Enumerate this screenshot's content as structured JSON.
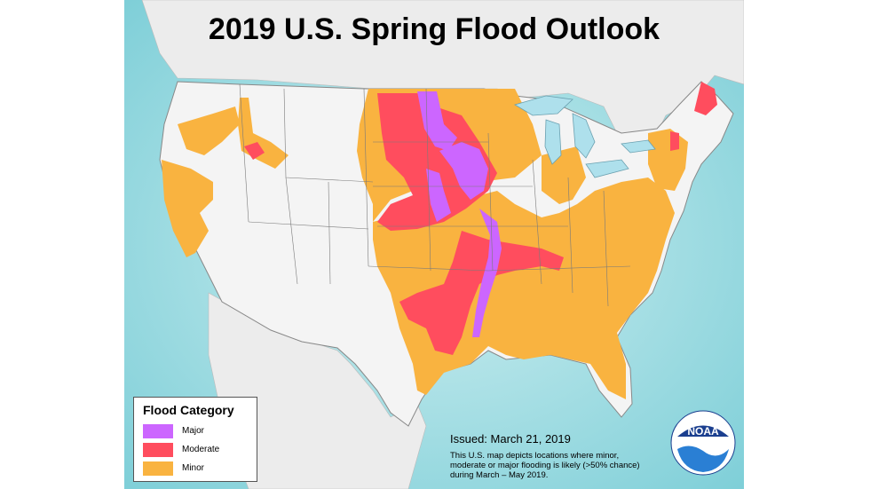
{
  "map": {
    "title": "2019 U.S. Spring Flood Outlook",
    "legend": {
      "title": "Flood Category",
      "items": [
        {
          "label": "Major",
          "color": "#cc66ff"
        },
        {
          "label": "Moderate",
          "color": "#ff4d5e"
        },
        {
          "label": "Minor",
          "color": "#f9b340"
        }
      ]
    },
    "issued": "Issued:  March 21, 2019",
    "description": "This U.S. map depicts locations where minor, moderate or major flooding is likely (>50% chance) during March – May  2019.",
    "logo_text": "NOAA",
    "colors": {
      "ocean": "#a9dde3",
      "land": "#f1f1f1",
      "lakes": "#aee0ec"
    }
  }
}
